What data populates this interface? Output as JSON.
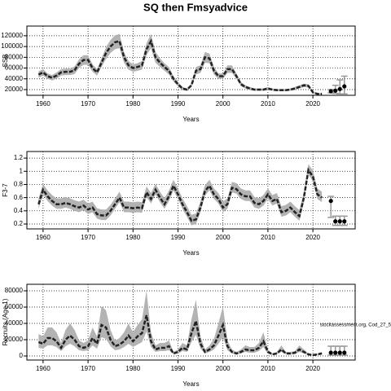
{
  "chart_data": [
    {
      "type": "line",
      "title": "SQ then Fmsyadvice",
      "xlabel": "Years",
      "ylabel": "SSB",
      "x": [
        1959,
        1960,
        1961,
        1962,
        1963,
        1964,
        1965,
        1966,
        1967,
        1968,
        1969,
        1970,
        1971,
        1972,
        1973,
        1974,
        1975,
        1976,
        1977,
        1978,
        1979,
        1980,
        1981,
        1982,
        1983,
        1984,
        1985,
        1986,
        1987,
        1988,
        1989,
        1990,
        1991,
        1992,
        1993,
        1994,
        1995,
        1996,
        1997,
        1998,
        1999,
        2000,
        2001,
        2002,
        2003,
        2004,
        2005,
        2006,
        2007,
        2008,
        2009,
        2010,
        2011,
        2012,
        2013,
        2014,
        2015,
        2016,
        2017,
        2018,
        2019,
        2020,
        2021,
        2022
      ],
      "values": [
        48000,
        52000,
        45000,
        42000,
        46000,
        52000,
        53000,
        53000,
        56000,
        68000,
        75000,
        75000,
        60000,
        52000,
        70000,
        88000,
        100000,
        108000,
        110000,
        80000,
        65000,
        60000,
        62000,
        65000,
        95000,
        110000,
        80000,
        70000,
        62000,
        55000,
        40000,
        30000,
        22000,
        20000,
        28000,
        55000,
        58000,
        80000,
        78000,
        55000,
        45000,
        45000,
        58000,
        58000,
        45000,
        30000,
        25000,
        22000,
        20000,
        20000,
        20000,
        22000,
        20000,
        19000,
        19000,
        19000,
        20000,
        22000,
        25000,
        28000,
        27000,
        15000,
        12000,
        12000
      ],
      "lower": [
        42000,
        46000,
        40000,
        37000,
        40000,
        46000,
        47000,
        47000,
        49000,
        60000,
        66000,
        66000,
        53000,
        46000,
        62000,
        77000,
        88000,
        95000,
        97000,
        70000,
        57000,
        53000,
        55000,
        57000,
        84000,
        97000,
        70000,
        62000,
        55000,
        48000,
        35000,
        26000,
        19000,
        18000,
        25000,
        48000,
        51000,
        70000,
        69000,
        48000,
        40000,
        40000,
        51000,
        51000,
        40000,
        26000,
        22000,
        19000,
        18000,
        18000,
        18000,
        19000,
        18000,
        17000,
        17000,
        17000,
        18000,
        19000,
        22000,
        25000,
        24000,
        13000,
        11000,
        11000
      ],
      "upper": [
        54000,
        58000,
        50000,
        47000,
        52000,
        58000,
        59000,
        59000,
        63000,
        76000,
        84000,
        84000,
        67000,
        58000,
        78000,
        99000,
        112000,
        121000,
        123000,
        90000,
        73000,
        67000,
        69000,
        73000,
        106000,
        123000,
        90000,
        78000,
        69000,
        62000,
        45000,
        34000,
        25000,
        22000,
        31000,
        62000,
        65000,
        90000,
        87000,
        62000,
        50000,
        50000,
        65000,
        65000,
        50000,
        34000,
        28000,
        25000,
        22000,
        22000,
        22000,
        25000,
        22000,
        21000,
        21000,
        21000,
        22000,
        25000,
        28000,
        31000,
        30000,
        17000,
        13000,
        13000
      ],
      "projection": {
        "x": [
          2024,
          2025,
          2026,
          2027
        ],
        "values": [
          17000,
          18000,
          21000,
          26000
        ],
        "lower": [
          14000,
          13000,
          12000,
          12000
        ],
        "upper": [
          20000,
          28000,
          38000,
          45000
        ]
      },
      "xlim": [
        1956.4,
        2029.4
      ],
      "xticks": [
        1960,
        1970,
        1980,
        1990,
        2000,
        2010,
        2020
      ],
      "ylim": [
        9400,
        138000
      ],
      "yticks": [
        20000,
        40000,
        60000,
        80000,
        100000,
        120000
      ],
      "grid": true
    },
    {
      "type": "line",
      "xlabel": "Years",
      "ylabel": "F3-7",
      "x": [
        1959,
        1960,
        1961,
        1962,
        1963,
        1964,
        1965,
        1966,
        1967,
        1968,
        1969,
        1970,
        1971,
        1972,
        1973,
        1974,
        1975,
        1976,
        1977,
        1978,
        1979,
        1980,
        1981,
        1982,
        1983,
        1984,
        1985,
        1986,
        1987,
        1988,
        1989,
        1990,
        1991,
        1992,
        1993,
        1994,
        1995,
        1996,
        1997,
        1998,
        1999,
        2000,
        2001,
        2002,
        2003,
        2004,
        2005,
        2006,
        2007,
        2008,
        2009,
        2010,
        2011,
        2012,
        2013,
        2014,
        2015,
        2016,
        2017,
        2018,
        2019,
        2020,
        2021,
        2022
      ],
      "values": [
        0.5,
        0.72,
        0.62,
        0.55,
        0.5,
        0.5,
        0.52,
        0.5,
        0.47,
        0.45,
        0.48,
        0.42,
        0.45,
        0.35,
        0.33,
        0.33,
        0.4,
        0.5,
        0.6,
        0.45,
        0.45,
        0.44,
        0.45,
        0.44,
        0.68,
        0.58,
        0.72,
        0.6,
        0.5,
        0.62,
        0.78,
        0.65,
        0.5,
        0.38,
        0.25,
        0.27,
        0.45,
        0.7,
        0.78,
        0.65,
        0.58,
        0.45,
        0.5,
        0.75,
        0.73,
        0.65,
        0.62,
        0.62,
        0.52,
        0.5,
        0.55,
        0.65,
        0.55,
        0.58,
        0.38,
        0.4,
        0.45,
        0.38,
        0.32,
        0.6,
        1.02,
        0.92,
        0.65,
        0.6
      ],
      "lower": [
        0.43,
        0.65,
        0.55,
        0.48,
        0.43,
        0.43,
        0.45,
        0.43,
        0.4,
        0.38,
        0.41,
        0.35,
        0.38,
        0.28,
        0.26,
        0.26,
        0.33,
        0.43,
        0.53,
        0.38,
        0.38,
        0.37,
        0.38,
        0.37,
        0.61,
        0.51,
        0.65,
        0.53,
        0.43,
        0.55,
        0.71,
        0.58,
        0.43,
        0.31,
        0.18,
        0.2,
        0.38,
        0.63,
        0.71,
        0.58,
        0.51,
        0.38,
        0.43,
        0.68,
        0.66,
        0.58,
        0.55,
        0.55,
        0.45,
        0.43,
        0.48,
        0.58,
        0.48,
        0.51,
        0.31,
        0.33,
        0.38,
        0.31,
        0.25,
        0.53,
        0.95,
        0.85,
        0.58,
        0.53
      ],
      "upper": [
        0.59,
        0.81,
        0.71,
        0.64,
        0.59,
        0.59,
        0.61,
        0.59,
        0.56,
        0.54,
        0.57,
        0.51,
        0.54,
        0.44,
        0.42,
        0.42,
        0.49,
        0.59,
        0.69,
        0.54,
        0.54,
        0.53,
        0.54,
        0.53,
        0.77,
        0.67,
        0.81,
        0.69,
        0.59,
        0.71,
        0.87,
        0.74,
        0.59,
        0.47,
        0.34,
        0.36,
        0.54,
        0.79,
        0.87,
        0.74,
        0.67,
        0.54,
        0.59,
        0.84,
        0.82,
        0.74,
        0.71,
        0.71,
        0.61,
        0.59,
        0.64,
        0.74,
        0.64,
        0.67,
        0.47,
        0.49,
        0.54,
        0.47,
        0.41,
        0.69,
        1.11,
        1.01,
        0.74,
        0.69
      ],
      "projection": {
        "x": [
          2024,
          2025,
          2026,
          2027
        ],
        "values": [
          0.55,
          0.24,
          0.24,
          0.24
        ],
        "lower": [
          0.3,
          0.18,
          0.18,
          0.18
        ],
        "upper": [
          0.62,
          0.32,
          0.32,
          0.32
        ]
      },
      "xlim": [
        1956.4,
        2029.4
      ],
      "xticks": [
        1960,
        1970,
        1980,
        1990,
        2000,
        2010,
        2020
      ],
      "ylim": [
        0.126,
        1.3
      ],
      "yticks": [
        0.2,
        0.4,
        0.6,
        0.8,
        1.0,
        1.2
      ],
      "grid": true
    },
    {
      "type": "line",
      "xlabel": "Years",
      "ylabel": "Recruits (Age 1)",
      "annotation": "stockassessment.org, Cod_27_5",
      "x": [
        1959,
        1960,
        1961,
        1962,
        1963,
        1964,
        1965,
        1966,
        1967,
        1968,
        1969,
        1970,
        1971,
        1972,
        1973,
        1974,
        1975,
        1976,
        1977,
        1978,
        1979,
        1980,
        1981,
        1982,
        1983,
        1984,
        1985,
        1986,
        1987,
        1988,
        1989,
        1990,
        1991,
        1992,
        1993,
        1994,
        1995,
        1996,
        1997,
        1998,
        1999,
        2000,
        2001,
        2002,
        2003,
        2004,
        2005,
        2006,
        2007,
        2008,
        2009,
        2010,
        2011,
        2012,
        2013,
        2014,
        2015,
        2016,
        2017,
        2018,
        2019,
        2020,
        2021,
        2022
      ],
      "values": [
        17000,
        15000,
        22000,
        22000,
        18000,
        10000,
        20000,
        25000,
        20000,
        12000,
        10000,
        12000,
        22000,
        15000,
        38000,
        35000,
        20000,
        12000,
        14000,
        18000,
        25000,
        18000,
        24000,
        28000,
        50000,
        18000,
        8000,
        10000,
        10000,
        12000,
        3000,
        5000,
        10000,
        8000,
        28000,
        43000,
        15000,
        5000,
        8000,
        13000,
        25000,
        38000,
        12000,
        5000,
        3000,
        5000,
        8000,
        7000,
        7000,
        10000,
        18000,
        5000,
        2000,
        3000,
        8000,
        3000,
        3000,
        4000,
        8000,
        5000,
        2000,
        1000,
        2000,
        3000
      ],
      "lower": [
        10000,
        9000,
        13000,
        13000,
        11000,
        6000,
        12000,
        15000,
        12000,
        7000,
        6000,
        7000,
        13000,
        9000,
        23000,
        21000,
        12000,
        7000,
        8000,
        11000,
        15000,
        11000,
        14000,
        17000,
        30000,
        11000,
        5000,
        6000,
        6000,
        7000,
        2000,
        3000,
        6000,
        5000,
        17000,
        26000,
        9000,
        3000,
        5000,
        8000,
        15000,
        23000,
        7000,
        3000,
        2000,
        3000,
        5000,
        4000,
        4000,
        6000,
        11000,
        3000,
        1000,
        2000,
        5000,
        2000,
        2000,
        2000,
        5000,
        3000,
        1000,
        500,
        1000,
        2000
      ],
      "upper": [
        27000,
        24000,
        35000,
        35000,
        29000,
        16000,
        32000,
        40000,
        32000,
        19000,
        16000,
        19000,
        35000,
        24000,
        61000,
        56000,
        32000,
        19000,
        22000,
        29000,
        40000,
        29000,
        38000,
        45000,
        80000,
        29000,
        13000,
        16000,
        16000,
        19000,
        5000,
        8000,
        16000,
        13000,
        45000,
        69000,
        24000,
        8000,
        13000,
        21000,
        40000,
        61000,
        19000,
        8000,
        5000,
        8000,
        13000,
        11000,
        11000,
        16000,
        29000,
        8000,
        3000,
        5000,
        13000,
        5000,
        5000,
        6000,
        13000,
        8000,
        3000,
        2000,
        3000,
        5000
      ],
      "projection": {
        "x": [
          2024,
          2025,
          2026,
          2027
        ],
        "values": [
          4000,
          4000,
          4000,
          4000
        ],
        "lower": [
          1000,
          1000,
          1000,
          1000
        ],
        "upper": [
          12000,
          12000,
          12000,
          12000
        ]
      },
      "xlim": [
        1956.4,
        2029.4
      ],
      "xticks": [
        1960,
        1970,
        1980,
        1990,
        2000,
        2010,
        2020
      ],
      "ylim": [
        -5000,
        88000
      ],
      "yticks": [
        0,
        20000,
        40000,
        60000,
        80000
      ],
      "grid": true
    }
  ]
}
